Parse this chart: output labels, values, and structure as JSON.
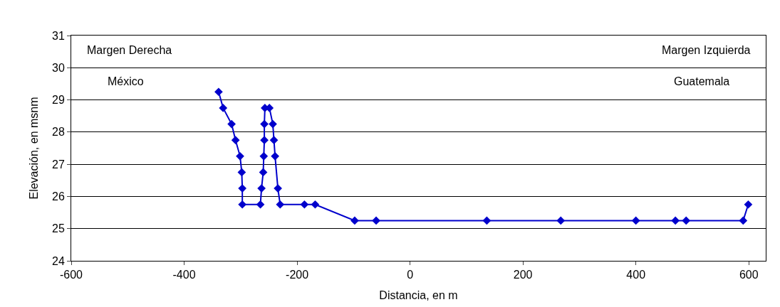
{
  "chart_data": {
    "type": "line",
    "xlabel": "Distancia, en m",
    "ylabel": "Elevación, en msnm",
    "annotations": [
      "Margen Derecha",
      "México",
      "Margen Izquierda",
      "Guatemala"
    ],
    "series": [
      {
        "color": "#0000cc",
        "x": [
          -339,
          -331,
          -316,
          -309,
          -301,
          -298,
          -297,
          -297,
          -265,
          -263,
          -260,
          -259,
          -258,
          -258,
          -257,
          -249,
          -243,
          -241,
          -239,
          -234,
          -230,
          -187,
          -168,
          -98,
          -60,
          136,
          267,
          400,
          470,
          489,
          590,
          599
        ],
        "values": [
          29.25,
          28.75,
          28.25,
          27.75,
          27.25,
          26.75,
          26.25,
          25.75,
          25.75,
          26.25,
          26.75,
          27.25,
          27.75,
          28.25,
          28.75,
          28.75,
          28.25,
          27.75,
          27.25,
          26.25,
          25.75,
          25.75,
          25.75,
          25.25,
          25.25,
          25.25,
          25.25,
          25.25,
          25.25,
          25.25,
          25.25,
          25.75
        ]
      }
    ],
    "xlim": [
      -600,
      630
    ],
    "xticks": [
      -600,
      -400,
      -200,
      0,
      200,
      400,
      600
    ],
    "ylim": [
      24,
      31
    ],
    "yticks": [
      24,
      25,
      26,
      27,
      28,
      29,
      30,
      31
    ],
    "grid": "y",
    "marker": "diamond",
    "line_style": "solid"
  }
}
